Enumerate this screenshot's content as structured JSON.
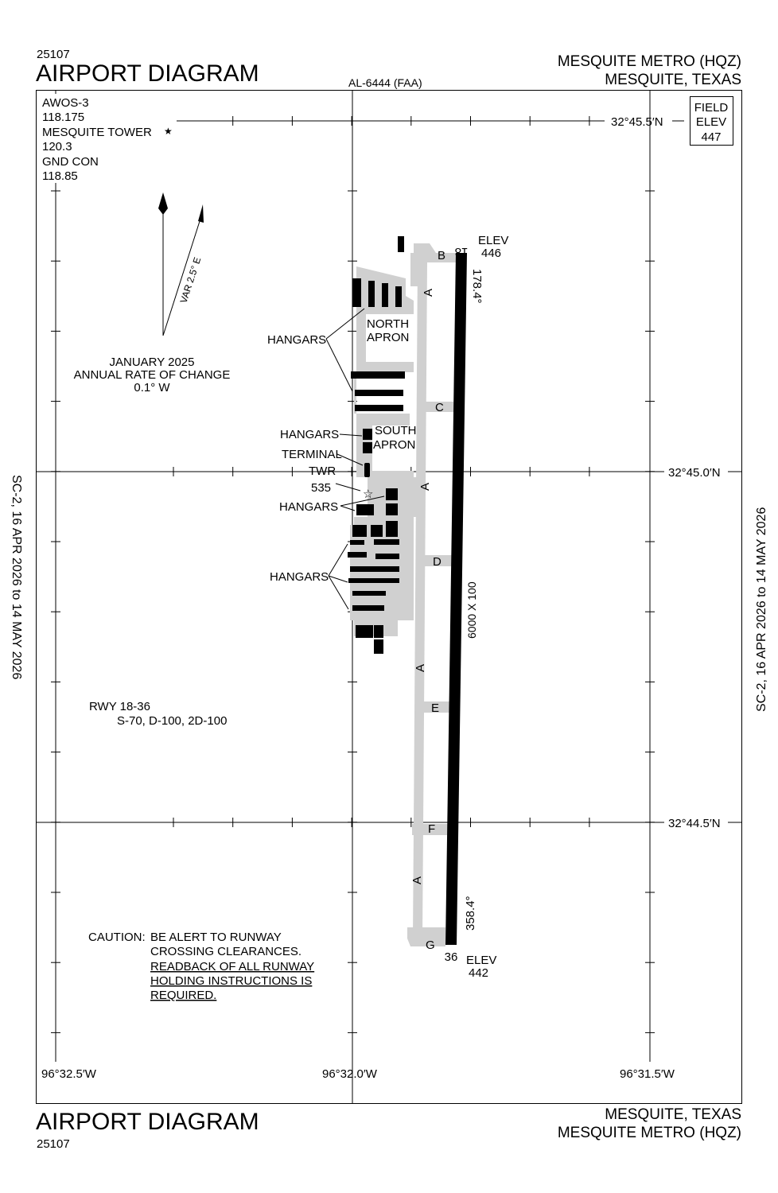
{
  "header": {
    "chart_number": "25107",
    "title": "AIRPORT DIAGRAM",
    "procedure_id": "AL-6444 (FAA)",
    "airport_name": "MESQUITE METRO (HQZ)",
    "city": "MESQUITE, TEXAS"
  },
  "footer": {
    "title": "AIRPORT DIAGRAM",
    "chart_number": "25107",
    "city": "MESQUITE, TEXAS",
    "airport_name": "MESQUITE METRO (HQZ)"
  },
  "side_margins": {
    "left": "SC-2,  16 APR 2026  to  14 MAY 2026",
    "right": "SC-2,  16 APR 2026  to  14 MAY 2026"
  },
  "frequencies": [
    "AWOS-3",
    "118.175",
    "MESQUITE TOWER",
    "120.3",
    "GND CON",
    "118.85"
  ],
  "field_elev": {
    "line1": "FIELD",
    "line2": "ELEV",
    "value": "447"
  },
  "magnetic_variation": {
    "var_label": "VAR 2.5° E",
    "date": "JANUARY 2025",
    "rate_label": "ANNUAL RATE OF CHANGE",
    "rate": "0.1° W"
  },
  "coordinates": {
    "lat_top": "32°45.5′N",
    "lat_mid": "32°45.0′N",
    "lat_bottom": "32°44.5′N",
    "lon_left": "96°32.5′W",
    "lon_mid": "96°32.0′W",
    "lon_right": "96°31.5′W"
  },
  "runway": {
    "end_north": "18",
    "end_south": "36",
    "elev_label": "ELEV",
    "elev_north": "446",
    "elev_south": "442",
    "heading_north": "178.4°",
    "heading_south": "358.4°",
    "dimensions": "6000 X 100",
    "strength_title": "RWY 18-36",
    "strength": "S-70, D-100, 2D-100"
  },
  "taxiways": {
    "A": "A",
    "B": "B",
    "C": "C",
    "D": "D",
    "E": "E",
    "F": "F",
    "G": "G"
  },
  "labels": {
    "hangars": "HANGARS",
    "north_apron_1": "NORTH",
    "north_apron_2": "APRON",
    "south_apron_1": "SOUTH",
    "south_apron_2": "APRON",
    "terminal": "TERMINAL",
    "twr": "TWR",
    "twr_height": "535"
  },
  "caution": {
    "prefix": "CAUTION:",
    "line1": "BE ALERT TO RUNWAY",
    "line2": "CROSSING CLEARANCES.",
    "line3": "READBACK OF ALL RUNWAY",
    "line4": "HOLDING INSTRUCTIONS IS",
    "line5": "REQUIRED."
  }
}
